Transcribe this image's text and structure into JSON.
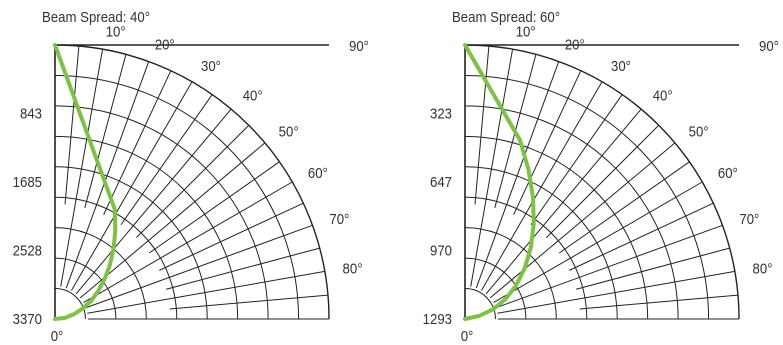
{
  "chart_data": [
    {
      "type": "polar",
      "title": "Beam Spread: 40°",
      "angle_ticks": [
        "0°",
        "10°",
        "20°",
        "30°",
        "40°",
        "50°",
        "60°",
        "70°",
        "80°",
        "90°"
      ],
      "angle_range": [
        0,
        90
      ],
      "radial_ticks": [
        "843",
        "1685",
        "2528",
        "3370"
      ],
      "radial_range": [
        0,
        3370
      ],
      "grid": true,
      "curve_color": "#7cc243",
      "curve": {
        "angles": [
          0,
          2,
          4,
          6,
          8,
          10,
          12,
          14,
          16,
          18,
          20
        ],
        "values": [
          3370,
          3360,
          3320,
          3260,
          3180,
          3070,
          2940,
          2790,
          2610,
          2400,
          2150
        ]
      }
    },
    {
      "type": "polar",
      "title": "Beam Spread: 60°",
      "angle_ticks": [
        "0°",
        "10°",
        "20°",
        "30°",
        "40°",
        "50°",
        "60°",
        "70°",
        "80°",
        "90°"
      ],
      "angle_range": [
        0,
        90
      ],
      "radial_ticks": [
        "323",
        "647",
        "970",
        "1293"
      ],
      "radial_range": [
        0,
        1293
      ],
      "grid": true,
      "curve_color": "#7cc243",
      "curve": {
        "angles": [
          0,
          3,
          6,
          9,
          12,
          15,
          18,
          21,
          24,
          27,
          30
        ],
        "values": [
          1293,
          1280,
          1255,
          1215,
          1160,
          1090,
          1005,
          905,
          790,
          660,
          520
        ]
      }
    }
  ]
}
